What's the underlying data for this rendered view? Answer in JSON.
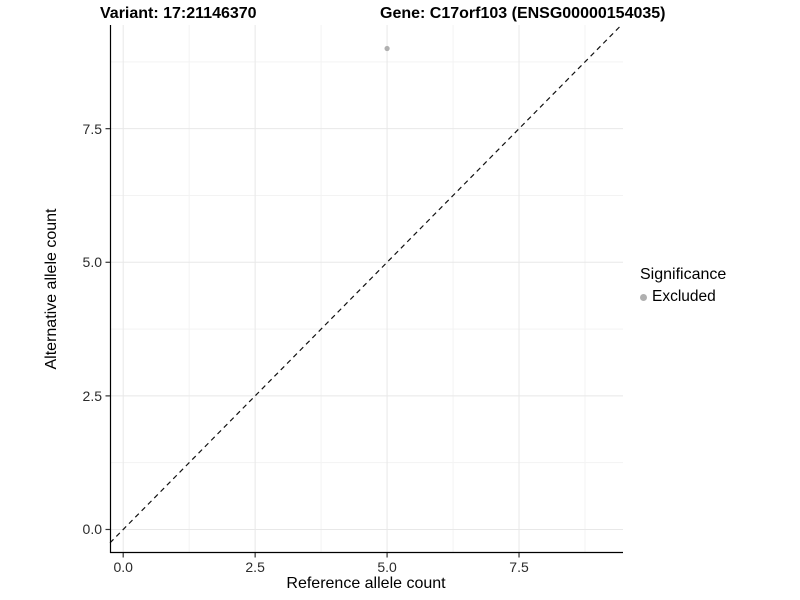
{
  "chart_data": {
    "type": "scatter",
    "title_left": "Variant: 17:21146370",
    "title_right": "Gene: C17orf103 (ENSG00000154035)",
    "xlabel": "Reference allele count",
    "ylabel": "Alternative allele count",
    "x_ticks": [
      0.0,
      2.5,
      5.0,
      7.5
    ],
    "y_ticks": [
      0.0,
      2.5,
      5.0,
      7.5
    ],
    "x_tick_labels": [
      "0.0",
      "2.5",
      "5.0",
      "7.5"
    ],
    "y_tick_labels": [
      "0.0",
      "2.5",
      "5.0",
      "7.5"
    ],
    "minor_ticks": [
      1.25,
      3.75,
      6.25,
      8.75
    ],
    "xlim": [
      -0.25,
      9.47
    ],
    "ylim": [
      -0.44,
      9.44
    ],
    "grid": true,
    "series": [
      {
        "name": "Excluded",
        "points": [
          {
            "x": 5.0,
            "y": 9.0
          }
        ],
        "color": "#b0b0b0",
        "point_radius": 2.6
      }
    ],
    "reference_line": {
      "kind": "identity",
      "slope": 1,
      "intercept": 0,
      "style": "dashed",
      "color": "#111111"
    },
    "legend": {
      "title": "Significance",
      "position": "right",
      "items": [
        {
          "label": "Excluded",
          "color": "#b0b0b0"
        }
      ]
    },
    "colors": {
      "grid_major": "#e8e8e8",
      "grid_minor": "#f3f3f3",
      "axis_line": "#000000",
      "tick_mark": "#333333",
      "background": "#ffffff"
    }
  }
}
